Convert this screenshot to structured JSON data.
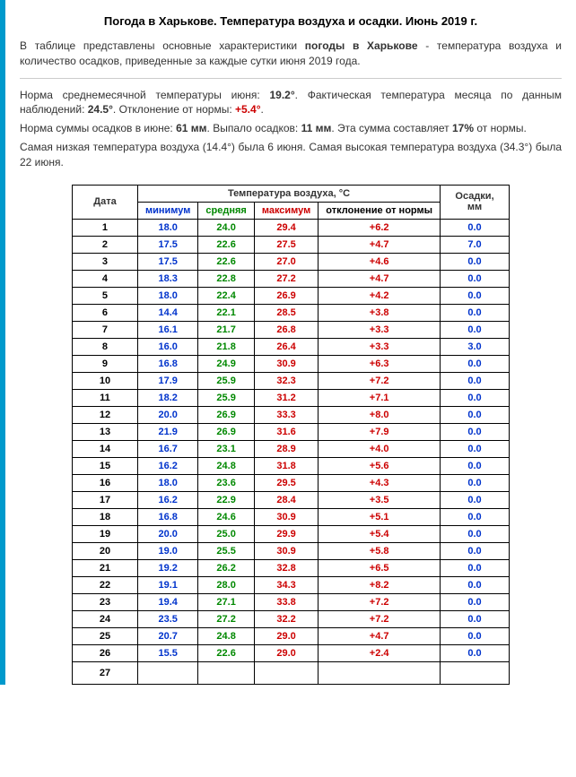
{
  "title": "Погода в Харькове. Температура воздуха и осадки. Июнь 2019 г.",
  "intro_prefix": "В таблице представлены основные характеристики ",
  "intro_bold": "погоды в Харькове",
  "intro_suffix": " - температура воздуха и количество осадков, приведенные за каждые сутки июня 2019 года.",
  "stats": {
    "p1_a": "Норма среднемесячной температуры июня: ",
    "p1_norm": "19.2°",
    "p1_b": ". Фактическая температура месяца по данным наблюдений: ",
    "p1_fact": "24.5°",
    "p1_c": ". Отклонение от нормы: ",
    "p1_dev": "+5.4°",
    "p1_d": ".",
    "p2_a": "Норма суммы осадков в июне: ",
    "p2_norm": "61 мм",
    "p2_b": ". Выпало осадков: ",
    "p2_fact": "11 мм",
    "p2_c": ". Эта сумма составляет ",
    "p2_pct": "17%",
    "p2_d": " от нормы.",
    "p3": "Самая низкая температура воздуха (14.4°) была 6 июня. Самая высокая температура воздуха (34.3°) была 22 июня."
  },
  "headers": {
    "date": "Дата",
    "temp_group": "Температура воздуха, °C",
    "min": "минимум",
    "avg": "средняя",
    "max": "максимум",
    "dev": "отклонение от нормы",
    "prec": "Осадки, мм"
  },
  "rows": [
    {
      "d": "1",
      "min": "18.0",
      "avg": "24.0",
      "max": "29.4",
      "dev": "+6.2",
      "prec": "0.0"
    },
    {
      "d": "2",
      "min": "17.5",
      "avg": "22.6",
      "max": "27.5",
      "dev": "+4.7",
      "prec": "7.0"
    },
    {
      "d": "3",
      "min": "17.5",
      "avg": "22.6",
      "max": "27.0",
      "dev": "+4.6",
      "prec": "0.0"
    },
    {
      "d": "4",
      "min": "18.3",
      "avg": "22.8",
      "max": "27.2",
      "dev": "+4.7",
      "prec": "0.0"
    },
    {
      "d": "5",
      "min": "18.0",
      "avg": "22.4",
      "max": "26.9",
      "dev": "+4.2",
      "prec": "0.0"
    },
    {
      "d": "6",
      "min": "14.4",
      "avg": "22.1",
      "max": "28.5",
      "dev": "+3.8",
      "prec": "0.0"
    },
    {
      "d": "7",
      "min": "16.1",
      "avg": "21.7",
      "max": "26.8",
      "dev": "+3.3",
      "prec": "0.0"
    },
    {
      "d": "8",
      "min": "16.0",
      "avg": "21.8",
      "max": "26.4",
      "dev": "+3.3",
      "prec": "3.0"
    },
    {
      "d": "9",
      "min": "16.8",
      "avg": "24.9",
      "max": "30.9",
      "dev": "+6.3",
      "prec": "0.0"
    },
    {
      "d": "10",
      "min": "17.9",
      "avg": "25.9",
      "max": "32.3",
      "dev": "+7.2",
      "prec": "0.0"
    },
    {
      "d": "11",
      "min": "18.2",
      "avg": "25.9",
      "max": "31.2",
      "dev": "+7.1",
      "prec": "0.0"
    },
    {
      "d": "12",
      "min": "20.0",
      "avg": "26.9",
      "max": "33.3",
      "dev": "+8.0",
      "prec": "0.0"
    },
    {
      "d": "13",
      "min": "21.9",
      "avg": "26.9",
      "max": "31.6",
      "dev": "+7.9",
      "prec": "0.0"
    },
    {
      "d": "14",
      "min": "16.7",
      "avg": "23.1",
      "max": "28.9",
      "dev": "+4.0",
      "prec": "0.0"
    },
    {
      "d": "15",
      "min": "16.2",
      "avg": "24.8",
      "max": "31.8",
      "dev": "+5.6",
      "prec": "0.0"
    },
    {
      "d": "16",
      "min": "18.0",
      "avg": "23.6",
      "max": "29.5",
      "dev": "+4.3",
      "prec": "0.0"
    },
    {
      "d": "17",
      "min": "16.2",
      "avg": "22.9",
      "max": "28.4",
      "dev": "+3.5",
      "prec": "0.0"
    },
    {
      "d": "18",
      "min": "16.8",
      "avg": "24.6",
      "max": "30.9",
      "dev": "+5.1",
      "prec": "0.0"
    },
    {
      "d": "19",
      "min": "20.0",
      "avg": "25.0",
      "max": "29.9",
      "dev": "+5.4",
      "prec": "0.0"
    },
    {
      "d": "20",
      "min": "19.0",
      "avg": "25.5",
      "max": "30.9",
      "dev": "+5.8",
      "prec": "0.0"
    },
    {
      "d": "21",
      "min": "19.2",
      "avg": "26.2",
      "max": "32.8",
      "dev": "+6.5",
      "prec": "0.0"
    },
    {
      "d": "22",
      "min": "19.1",
      "avg": "28.0",
      "max": "34.3",
      "dev": "+8.2",
      "prec": "0.0"
    },
    {
      "d": "23",
      "min": "19.4",
      "avg": "27.1",
      "max": "33.8",
      "dev": "+7.2",
      "prec": "0.0"
    },
    {
      "d": "24",
      "min": "23.5",
      "avg": "27.2",
      "max": "32.2",
      "dev": "+7.2",
      "prec": "0.0"
    },
    {
      "d": "25",
      "min": "20.7",
      "avg": "24.8",
      "max": "29.0",
      "dev": "+4.7",
      "prec": "0.0"
    },
    {
      "d": "26",
      "min": "15.5",
      "avg": "22.6",
      "max": "29.0",
      "dev": "+2.4",
      "prec": "0.0"
    },
    {
      "d": "27",
      "min": "",
      "avg": "",
      "max": "",
      "dev": "",
      "prec": ""
    }
  ]
}
